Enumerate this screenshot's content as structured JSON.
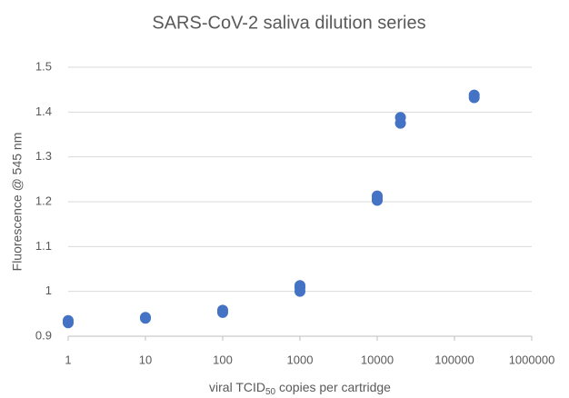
{
  "chart_data": {
    "type": "scatter",
    "title": "SARS-CoV-2 saliva dilution series",
    "x_label_parts": [
      "viral TCID",
      "50",
      " copies per cartridge"
    ],
    "y_label": "Fluorescence @ 545 nm",
    "x": [
      1,
      1,
      10,
      10,
      100,
      100,
      1000,
      1000,
      1000,
      10000,
      10000,
      10000,
      20000,
      20000,
      180000,
      180000
    ],
    "values": [
      0.93,
      0.935,
      0.94,
      0.942,
      0.953,
      0.958,
      1.0,
      1.008,
      1.013,
      1.203,
      1.208,
      1.213,
      1.375,
      1.388,
      1.432,
      1.438
    ],
    "color": "#4472c4",
    "xscale": "log",
    "xlim": [
      1,
      1000000
    ],
    "xticks": [
      1,
      10,
      100,
      1000,
      10000,
      100000,
      1000000
    ],
    "ylim": [
      0.9,
      1.5
    ],
    "yticks": [
      0.9,
      1,
      1.1,
      1.2,
      1.3,
      1.4,
      1.5
    ],
    "grid": true
  }
}
